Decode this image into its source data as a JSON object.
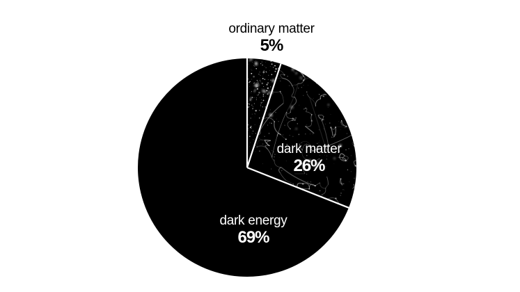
{
  "chart_data": {
    "type": "pie",
    "start_angle": "12-oclock",
    "direction": "clockwise",
    "background_color": "#ffffff",
    "separator_color": "#ffffff",
    "slices": [
      {
        "label": "ordinary matter",
        "pct_label": "5%",
        "value": 5,
        "fill_color": "#000000",
        "texture": "galaxy-field",
        "label_color": "#000000",
        "label_placement": "outside-top"
      },
      {
        "label": "dark matter",
        "pct_label": "26%",
        "value": 26,
        "fill_color": "#000000",
        "texture": "cosmic-web",
        "label_color": "#ffffff",
        "label_placement": "inside"
      },
      {
        "label": "dark energy",
        "pct_label": "69%",
        "value": 69,
        "fill_color": "#000000",
        "texture": "solid",
        "label_color": "#ffffff",
        "label_placement": "inside"
      }
    ]
  }
}
